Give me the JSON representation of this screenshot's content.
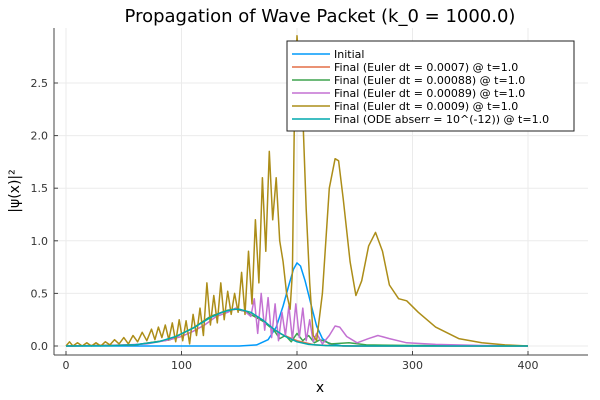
{
  "chart_data": {
    "type": "line",
    "title": "Propagation of Wave Packet (k_0 = 1000.0)",
    "xlabel": "x",
    "ylabel": "|ψ(x)|²",
    "xlim": [
      -5,
      405
    ],
    "ylim": [
      -0.08,
      2.95
    ],
    "xticks": [
      0,
      100,
      200,
      300,
      400
    ],
    "xtick_labels": [
      "0",
      "100",
      "200",
      "300",
      "400"
    ],
    "yticks": [
      0.0,
      0.5,
      1.0,
      1.5,
      2.0,
      2.5
    ],
    "ytick_labels": [
      "0.0",
      "0.5",
      "1.0",
      "1.5",
      "2.0",
      "2.5"
    ],
    "grid": true,
    "legend_position": "top-right",
    "series": [
      {
        "name": "Initial",
        "color": "#009AFA",
        "points": [
          [
            0,
            0
          ],
          [
            150,
            0
          ],
          [
            165,
            0.01
          ],
          [
            175,
            0.06
          ],
          [
            182,
            0.18
          ],
          [
            188,
            0.38
          ],
          [
            193,
            0.58
          ],
          [
            197,
            0.73
          ],
          [
            200,
            0.79
          ],
          [
            203,
            0.76
          ],
          [
            207,
            0.62
          ],
          [
            212,
            0.4
          ],
          [
            217,
            0.19
          ],
          [
            222,
            0.07
          ],
          [
            228,
            0.02
          ],
          [
            240,
            0
          ],
          [
            400,
            0
          ]
        ]
      },
      {
        "name": "Final (Euler dt = 0.0007) @ t=1.0",
        "color": "#E36F47",
        "points": [
          [
            0,
            0
          ],
          [
            60,
            0.01
          ],
          [
            90,
            0.06
          ],
          [
            110,
            0.17
          ],
          [
            125,
            0.28
          ],
          [
            140,
            0.34
          ],
          [
            147,
            0.35
          ],
          [
            155,
            0.33
          ],
          [
            170,
            0.24
          ],
          [
            185,
            0.12
          ],
          [
            200,
            0.05
          ],
          [
            215,
            0.01
          ],
          [
            240,
            0
          ],
          [
            400,
            0
          ]
        ]
      },
      {
        "name": "Final (Euler dt = 0.00088) @ t=1.0",
        "color": "#3EA44E",
        "points": [
          [
            0,
            0
          ],
          [
            60,
            0.01
          ],
          [
            90,
            0.06
          ],
          [
            110,
            0.17
          ],
          [
            125,
            0.28
          ],
          [
            140,
            0.34
          ],
          [
            147,
            0.35
          ],
          [
            155,
            0.33
          ],
          [
            170,
            0.24
          ],
          [
            180,
            0.15
          ],
          [
            185,
            0.07
          ],
          [
            190,
            0.1
          ],
          [
            195,
            0.04
          ],
          [
            200,
            0.12
          ],
          [
            205,
            0.05
          ],
          [
            210,
            0.1
          ],
          [
            215,
            0.03
          ],
          [
            220,
            0.06
          ],
          [
            230,
            0.02
          ],
          [
            245,
            0.03
          ],
          [
            260,
            0.01
          ],
          [
            300,
            0.005
          ],
          [
            400,
            0
          ]
        ]
      },
      {
        "name": "Final (Euler dt = 0.00089) @ t=1.0",
        "color": "#C371D2",
        "points": [
          [
            0,
            0
          ],
          [
            40,
            0.005
          ],
          [
            70,
            0.02
          ],
          [
            90,
            0.06
          ],
          [
            100,
            0.09
          ],
          [
            110,
            0.14
          ],
          [
            120,
            0.2
          ],
          [
            130,
            0.28
          ],
          [
            140,
            0.32
          ],
          [
            147,
            0.36
          ],
          [
            155,
            0.33
          ],
          [
            160,
            0.28
          ],
          [
            163,
            0.45
          ],
          [
            166,
            0.12
          ],
          [
            169,
            0.5
          ],
          [
            172,
            0.15
          ],
          [
            175,
            0.46
          ],
          [
            178,
            0.08
          ],
          [
            181,
            0.4
          ],
          [
            184,
            0.05
          ],
          [
            187,
            0.32
          ],
          [
            190,
            0.1
          ],
          [
            193,
            0.38
          ],
          [
            196,
            0.06
          ],
          [
            199,
            0.4
          ],
          [
            202,
            0.08
          ],
          [
            205,
            0.36
          ],
          [
            208,
            0.05
          ],
          [
            211,
            0.25
          ],
          [
            214,
            0.04
          ],
          [
            217,
            0.12
          ],
          [
            222,
            0.02
          ],
          [
            228,
            0.1
          ],
          [
            233,
            0.19
          ],
          [
            237,
            0.18
          ],
          [
            243,
            0.09
          ],
          [
            252,
            0.03
          ],
          [
            262,
            0.07
          ],
          [
            270,
            0.1
          ],
          [
            280,
            0.07
          ],
          [
            295,
            0.03
          ],
          [
            320,
            0.015
          ],
          [
            360,
            0.005
          ],
          [
            400,
            0
          ]
        ]
      },
      {
        "name": "Final (Euler dt = 0.0009) @ t=1.0",
        "color": "#AC8D18",
        "points": [
          [
            0,
            0
          ],
          [
            3,
            0.04
          ],
          [
            6,
            0.0
          ],
          [
            10,
            0.03
          ],
          [
            14,
            0.0
          ],
          [
            18,
            0.03
          ],
          [
            22,
            0.0
          ],
          [
            26,
            0.03
          ],
          [
            30,
            0.0
          ],
          [
            34,
            0.04
          ],
          [
            38,
            0.01
          ],
          [
            42,
            0.06
          ],
          [
            46,
            0.02
          ],
          [
            50,
            0.08
          ],
          [
            54,
            0.02
          ],
          [
            58,
            0.1
          ],
          [
            62,
            0.04
          ],
          [
            66,
            0.13
          ],
          [
            70,
            0.05
          ],
          [
            74,
            0.16
          ],
          [
            77,
            0.06
          ],
          [
            80,
            0.18
          ],
          [
            83,
            0.08
          ],
          [
            86,
            0.2
          ],
          [
            89,
            0.06
          ],
          [
            92,
            0.22
          ],
          [
            95,
            0.04
          ],
          [
            98,
            0.25
          ],
          [
            101,
            0.05
          ],
          [
            104,
            0.24
          ],
          [
            107,
            0.02
          ],
          [
            110,
            0.3
          ],
          [
            113,
            0.1
          ],
          [
            116,
            0.36
          ],
          [
            119,
            0.1
          ],
          [
            122,
            0.6
          ],
          [
            125,
            0.2
          ],
          [
            128,
            0.48
          ],
          [
            131,
            0.22
          ],
          [
            134,
            0.6
          ],
          [
            137,
            0.25
          ],
          [
            140,
            0.52
          ],
          [
            143,
            0.3
          ],
          [
            146,
            0.5
          ],
          [
            149,
            0.32
          ],
          [
            152,
            0.7
          ],
          [
            155,
            0.3
          ],
          [
            158,
            0.9
          ],
          [
            161,
            0.4
          ],
          [
            164,
            1.2
          ],
          [
            167,
            0.6
          ],
          [
            170,
            1.6
          ],
          [
            173,
            0.9
          ],
          [
            176,
            1.85
          ],
          [
            179,
            1.2
          ],
          [
            182,
            1.6
          ],
          [
            185,
            1.0
          ],
          [
            188,
            0.8
          ],
          [
            191,
            0.5
          ],
          [
            194,
            0.35
          ],
          [
            196,
            0.7
          ],
          [
            198,
            2.4
          ],
          [
            200,
            2.95
          ],
          [
            202,
            2.6
          ],
          [
            205,
            2.2
          ],
          [
            208,
            1.3
          ],
          [
            211,
            0.6
          ],
          [
            214,
            0.1
          ],
          [
            217,
            0.05
          ],
          [
            222,
            0.5
          ],
          [
            228,
            1.5
          ],
          [
            233,
            1.78
          ],
          [
            236,
            1.76
          ],
          [
            240,
            1.4
          ],
          [
            246,
            0.8
          ],
          [
            251,
            0.48
          ],
          [
            256,
            0.62
          ],
          [
            262,
            0.95
          ],
          [
            268,
            1.08
          ],
          [
            274,
            0.9
          ],
          [
            280,
            0.58
          ],
          [
            288,
            0.45
          ],
          [
            295,
            0.43
          ],
          [
            305,
            0.32
          ],
          [
            320,
            0.18
          ],
          [
            340,
            0.07
          ],
          [
            360,
            0.03
          ],
          [
            380,
            0.01
          ],
          [
            400,
            0
          ]
        ]
      },
      {
        "name": "Final (ODE abserr = 10^(-12)) @ t=1.0",
        "color": "#00A9AD",
        "points": [
          [
            0,
            0
          ],
          [
            40,
            0.003
          ],
          [
            60,
            0.012
          ],
          [
            80,
            0.04
          ],
          [
            95,
            0.09
          ],
          [
            110,
            0.17
          ],
          [
            125,
            0.27
          ],
          [
            135,
            0.32
          ],
          [
            145,
            0.35
          ],
          [
            150,
            0.35
          ],
          [
            160,
            0.32
          ],
          [
            170,
            0.25
          ],
          [
            180,
            0.16
          ],
          [
            190,
            0.09
          ],
          [
            200,
            0.04
          ],
          [
            210,
            0.015
          ],
          [
            225,
            0.004
          ],
          [
            250,
            0
          ],
          [
            400,
            0
          ]
        ]
      }
    ]
  }
}
